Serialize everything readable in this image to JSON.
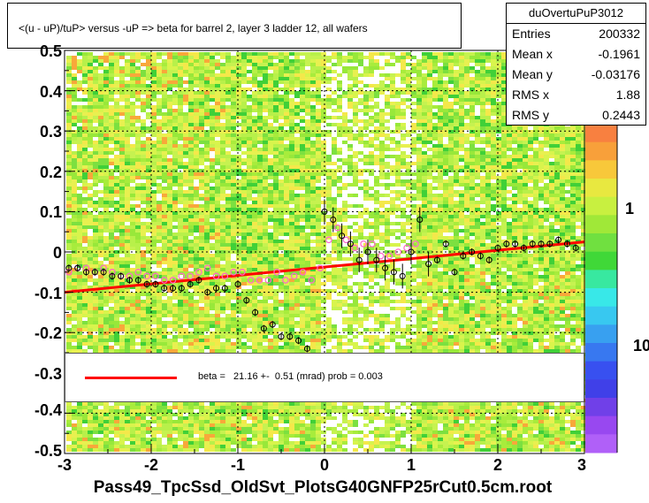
{
  "title": "<(u - uP)/tuP> versus  -uP => beta for barrel 2, layer 3 ladder 12, all wafers",
  "xaxis_title": "Pass49_TpcSsd_OldSvt_PlotsG40GNFP25rCut0.5cm.root",
  "stats": {
    "name": "duOvertuPuP3012",
    "rows": [
      {
        "label": "Entries",
        "value": "200332"
      },
      {
        "label": "Mean x",
        "value": "-0.1961"
      },
      {
        "label": "Mean y",
        "value": "-0.03176"
      },
      {
        "label": "RMS x",
        "value": "1.88"
      },
      {
        "label": "RMS y",
        "value": "0.2443"
      }
    ]
  },
  "legend": {
    "fit_label": "beta =   21.16 +-  0.51 (mrad) prob = 0.003",
    "fit_color": "#ff0000"
  },
  "colors": {
    "fit_line": "#ff0000",
    "profile_open": "#000000",
    "profile_pink": "#ff66cc",
    "heat_dominant": "#b8f04a",
    "heat_low": "#ffffff"
  },
  "chart_data": {
    "type": "heatmap",
    "title": "<(u - uP)/tuP> versus  -uP => beta for barrel 2, layer 3 ladder 12, all wafers",
    "xlabel": "",
    "ylabel": "",
    "xlim": [
      -3,
      3
    ],
    "ylim": [
      -0.5,
      0.5
    ],
    "x_ticks": [
      "-3",
      "-2",
      "-1",
      "0",
      "1",
      "2",
      "3"
    ],
    "y_ticks": [
      "-0.5",
      "-0.4",
      "-0.3",
      "-0.2",
      "-0.1",
      "0",
      "0.1",
      "0.2",
      "0.3",
      "0.4",
      "0.5"
    ],
    "z_scale": "log",
    "z_ticks": [
      "1",
      "10"
    ],
    "fit_line": {
      "x": [
        -3,
        3
      ],
      "y": [
        -0.1,
        0.025
      ]
    },
    "profile_black": {
      "x": [
        -2.95,
        -2.85,
        -2.75,
        -2.65,
        -2.55,
        -2.45,
        -2.35,
        -2.25,
        -2.15,
        -2.05,
        -1.95,
        -1.85,
        -1.75,
        -1.65,
        -1.55,
        -1.45,
        -1.35,
        -1.25,
        -1.15,
        -1.0,
        -0.9,
        -0.8,
        -0.7,
        -0.6,
        -0.5,
        -0.4,
        -0.3,
        -0.2,
        0.0,
        0.1,
        0.2,
        0.3,
        0.4,
        0.5,
        0.6,
        0.7,
        0.8,
        0.9,
        1.0,
        1.1,
        1.2,
        1.3,
        1.4,
        1.5,
        1.6,
        1.7,
        1.8,
        1.9,
        2.0,
        2.1,
        2.2,
        2.3,
        2.4,
        2.5,
        2.6,
        2.7,
        2.8,
        2.9
      ],
      "y": [
        -0.04,
        -0.04,
        -0.05,
        -0.05,
        -0.05,
        -0.06,
        -0.06,
        -0.07,
        -0.07,
        -0.08,
        -0.08,
        -0.09,
        -0.09,
        -0.09,
        -0.08,
        -0.07,
        -0.1,
        -0.09,
        -0.09,
        -0.08,
        -0.12,
        -0.15,
        -0.19,
        -0.18,
        -0.21,
        -0.21,
        -0.22,
        -0.24,
        0.1,
        0.08,
        0.04,
        0.02,
        -0.02,
        0.0,
        -0.02,
        -0.04,
        -0.05,
        -0.06,
        0.0,
        0.08,
        -0.03,
        -0.02,
        0.02,
        -0.05,
        -0.01,
        0.0,
        -0.01,
        -0.02,
        0.01,
        0.02,
        0.02,
        0.01,
        0.02,
        0.02,
        0.02,
        0.03,
        0.02,
        0.01
      ]
    },
    "profile_pink": {
      "x": [
        -2.95,
        -2.85,
        -2.75,
        -2.65,
        -2.55,
        -2.45,
        -2.35,
        -2.25,
        -2.15,
        -2.05,
        -1.95,
        -1.85,
        -1.75,
        -1.65,
        -1.55,
        -1.45,
        -1.35,
        -1.25,
        -1.15,
        -1.05,
        -0.95,
        -0.85,
        -0.75,
        -0.65,
        -0.55,
        -0.45,
        -0.35,
        -0.25,
        -0.15,
        -0.05,
        0.05,
        0.15,
        0.25,
        0.35,
        0.45,
        0.55,
        0.65,
        0.75,
        0.85,
        0.95,
        1.05
      ],
      "y": [
        -0.05,
        -0.04,
        -0.04,
        -0.05,
        -0.04,
        -0.05,
        -0.06,
        -0.06,
        -0.05,
        -0.06,
        -0.06,
        -0.07,
        -0.07,
        -0.06,
        -0.06,
        -0.05,
        -0.04,
        -0.06,
        -0.06,
        -0.05,
        -0.05,
        -0.07,
        -0.07,
        -0.07,
        -0.05,
        -0.07,
        -0.06,
        -0.05,
        -0.07,
        -0.04,
        0.03,
        0.06,
        0.03,
        0.01,
        0.02,
        0.02,
        -0.01,
        -0.01,
        0.0,
        0.01,
        0.02
      ]
    }
  }
}
